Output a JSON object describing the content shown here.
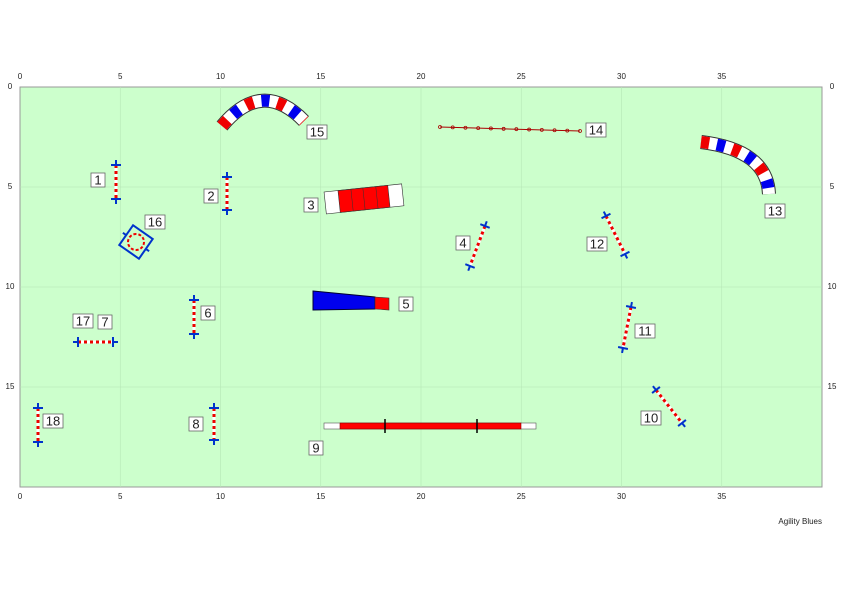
{
  "course": {
    "x_ticks": [
      0,
      5,
      10,
      15,
      20,
      25,
      30,
      35
    ],
    "y_ticks": [
      0,
      5,
      10,
      15
    ],
    "obstacles": [
      {
        "label": "1"
      },
      {
        "label": "2"
      },
      {
        "label": "3"
      },
      {
        "label": "4"
      },
      {
        "label": "5"
      },
      {
        "label": "6"
      },
      {
        "label": "7"
      },
      {
        "label": "8"
      },
      {
        "label": "9"
      },
      {
        "label": "10"
      },
      {
        "label": "11"
      },
      {
        "label": "12"
      },
      {
        "label": "13"
      },
      {
        "label": "14"
      },
      {
        "label": "15"
      },
      {
        "label": "16"
      },
      {
        "label": "17"
      },
      {
        "label": "18"
      }
    ],
    "footer": "Agility Blues"
  }
}
